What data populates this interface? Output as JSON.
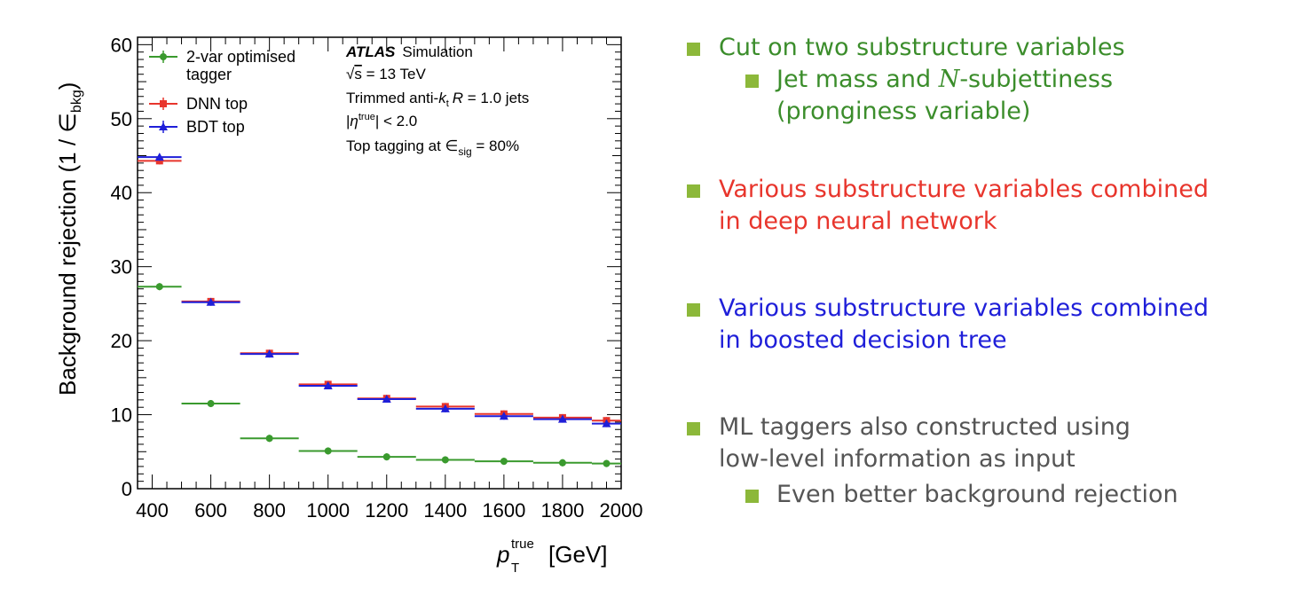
{
  "chart_data": {
    "type": "scatter",
    "xlabel": "p",
    "xlabel_sup": "true",
    "xlabel_sub": "T",
    "xlabel_unit": "[GeV]",
    "ylabel": "Background rejection (1 / ∈",
    "ylabel_sub": "bkg",
    "ylabel_close": ")",
    "xlim": [
      350,
      2000
    ],
    "ylim": [
      0,
      61
    ],
    "xticks": [
      400,
      600,
      800,
      1000,
      1200,
      1400,
      1600,
      1800,
      2000
    ],
    "yticks": [
      0,
      10,
      20,
      30,
      40,
      50,
      60
    ],
    "bins": [
      [
        350,
        500
      ],
      [
        500,
        700
      ],
      [
        700,
        900
      ],
      [
        900,
        1100
      ],
      [
        1100,
        1300
      ],
      [
        1300,
        1500
      ],
      [
        1500,
        1700
      ],
      [
        1700,
        1900
      ],
      [
        1900,
        2000
      ]
    ],
    "series": [
      {
        "name": "2-var optimised tagger",
        "color": "#3a9a2e",
        "marker": "circle",
        "x": [
          425,
          600,
          800,
          1000,
          1200,
          1400,
          1600,
          1800,
          1950
        ],
        "values": [
          27.3,
          11.5,
          6.8,
          5.1,
          4.3,
          3.9,
          3.7,
          3.5,
          3.4
        ]
      },
      {
        "name": "DNN top",
        "color": "#e8352c",
        "marker": "square",
        "x": [
          425,
          600,
          800,
          1000,
          1200,
          1400,
          1600,
          1800,
          1950
        ],
        "values": [
          44.3,
          25.3,
          18.3,
          14.1,
          12.2,
          11.1,
          10.1,
          9.6,
          9.2
        ]
      },
      {
        "name": "BDT top",
        "color": "#1f1fd9",
        "marker": "triangle",
        "x": [
          425,
          600,
          800,
          1000,
          1200,
          1400,
          1600,
          1800,
          1950
        ],
        "values": [
          44.8,
          25.2,
          18.2,
          13.9,
          12.1,
          10.8,
          9.8,
          9.4,
          8.8
        ]
      }
    ],
    "legend_lines": [
      "2-var optimised",
      "tagger",
      "DNN top",
      "BDT top"
    ],
    "annotations": {
      "experiment": "ATLAS",
      "label": "Simulation",
      "energy_sqrt": "√",
      "energy_s": "s",
      "energy_rest": " = 13 TeV",
      "jets_a": "Trimmed anti-",
      "jets_k": "k",
      "jets_t": "t",
      "jets_r": "R",
      "jets_rest": " = 1.0 jets",
      "eta_a": "|",
      "eta_sym": "η",
      "eta_sup": "true",
      "eta_rest": "| < 2.0",
      "wp_a": "Top tagging at ∈",
      "wp_sub": "sig",
      "wp_rest": " = 80%"
    }
  },
  "bullets": {
    "b1": "Cut on two substructure variables",
    "b1_sub_a": "Jet mass and ",
    "b1_sub_n": "N",
    "b1_sub_b": "-subjettiness",
    "b1_sub_c": "(pronginess variable)",
    "b2_line1": "Various substructure variables combined",
    "b2_line2": "in deep neural network",
    "b3_line1": "Various substructure variables combined",
    "b3_line2": "in boosted decision tree",
    "b4_line1": "ML taggers also constructed using",
    "b4_line2": "low-level information as input",
    "b4_sub": "Even better background rejection"
  },
  "colors": {
    "bullet": "#8cb83a",
    "green": "#3b8d2b",
    "red": "#e8352c",
    "blue": "#1f1fd9",
    "grey": "#555555"
  }
}
